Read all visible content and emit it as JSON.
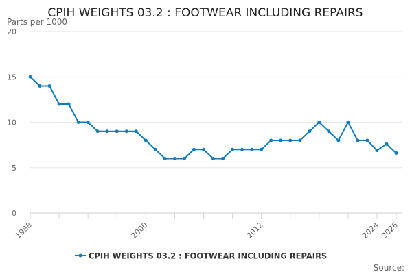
{
  "chart_data": {
    "type": "line",
    "title": "CPIH WEIGHTS 03.2 : FOOTWEAR INCLUDING REPAIRS",
    "ylabel": "Parts per 1000",
    "xlabel": "",
    "ylim": [
      0,
      20
    ],
    "yticks": [
      0,
      5,
      10,
      15,
      20
    ],
    "xlim": [
      1988,
      2026
    ],
    "xtick_labels": [
      "1988",
      "2000",
      "2012",
      "2024",
      "2026"
    ],
    "grid": true,
    "legend_position": "bottom",
    "color": "#0f7cbf",
    "series": [
      {
        "name": "CPIH WEIGHTS 03.2 : FOOTWEAR INCLUDING REPAIRS",
        "x": [
          1988,
          1989,
          1990,
          1991,
          1992,
          1993,
          1994,
          1995,
          1996,
          1997,
          1998,
          1999,
          2000,
          2001,
          2002,
          2003,
          2004,
          2005,
          2006,
          2007,
          2008,
          2009,
          2010,
          2011,
          2012,
          2013,
          2014,
          2015,
          2016,
          2017,
          2018,
          2019,
          2020,
          2021,
          2022,
          2023,
          2024,
          2025,
          2026
        ],
        "values": [
          15,
          14,
          14,
          12,
          12,
          10,
          10,
          9,
          9,
          9,
          9,
          9,
          8,
          7,
          6,
          6,
          6,
          7,
          7,
          6,
          6,
          7,
          7,
          7,
          7,
          8,
          8,
          8,
          8,
          9,
          10,
          9,
          8,
          10,
          8,
          8,
          6.9,
          7.6,
          6.6
        ]
      }
    ],
    "source_label": "Source:"
  }
}
